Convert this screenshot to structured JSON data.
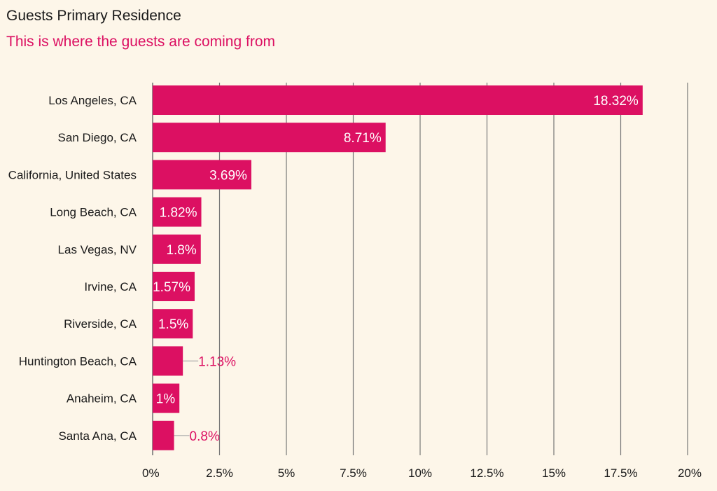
{
  "title": "Guests Primary Residence",
  "subtitle": "This is where the guests are coming from",
  "colors": {
    "bar": "#dc1062",
    "accent_text": "#dc1062",
    "background": "#fdf6e9",
    "grid": "#777777",
    "inside_label": "#ffffff",
    "leader": "#aaaaaa"
  },
  "chart_data": {
    "type": "bar",
    "orientation": "horizontal",
    "categories": [
      "Los Angeles, CA",
      "San Diego, CA",
      "California, United States",
      "Long Beach, CA",
      "Las Vegas, NV",
      "Irvine, CA",
      "Riverside, CA",
      "Huntington Beach, CA",
      "Anaheim, CA",
      "Santa Ana, CA"
    ],
    "values": [
      18.32,
      8.71,
      3.69,
      1.82,
      1.8,
      1.57,
      1.5,
      1.13,
      1,
      0.8
    ],
    "value_labels": [
      "18.32%",
      "8.71%",
      "3.69%",
      "1.82%",
      "1.8%",
      "1.57%",
      "1.5%",
      "1.13%",
      "1%",
      "0.8%"
    ],
    "xlim": [
      0,
      20
    ],
    "xticks": [
      0,
      2.5,
      5,
      7.5,
      10,
      12.5,
      15,
      17.5,
      20
    ],
    "xtick_labels": [
      "0%",
      "2.5%",
      "5%",
      "7.5%",
      "10%",
      "12.5%",
      "15%",
      "17.5%",
      "20%"
    ],
    "grid": "vertical",
    "legend": "none"
  }
}
